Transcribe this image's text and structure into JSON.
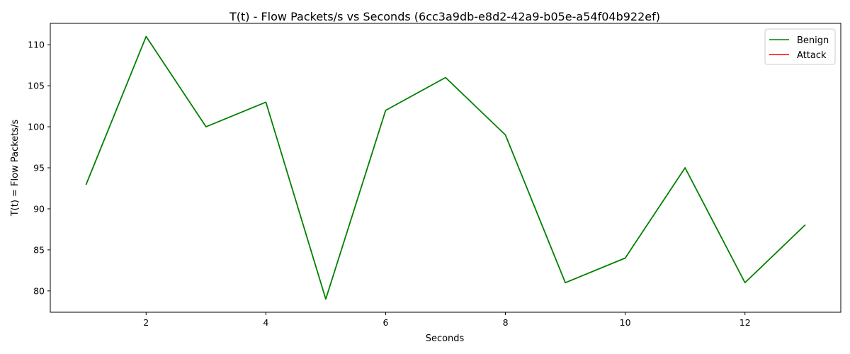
{
  "chart_data": {
    "type": "line",
    "title": "T(t) - Flow Packets/s vs Seconds (6cc3a9db-e8d2-42a9-b05e-a54f04b922ef)",
    "xlabel": "Seconds",
    "ylabel": "T(t) = Flow Packets/s",
    "xlim": [
      0.4,
      13.6
    ],
    "ylim": [
      77.4,
      112.6
    ],
    "xticks": [
      2,
      4,
      6,
      8,
      10,
      12
    ],
    "yticks": [
      80,
      85,
      90,
      95,
      100,
      105,
      110
    ],
    "grid": false,
    "legend_position": "top-right",
    "series": [
      {
        "name": "Benign",
        "color": "#008000",
        "x": [
          1,
          2,
          3,
          4,
          5,
          6,
          7,
          8,
          9,
          10,
          11,
          12,
          13
        ],
        "y": [
          93,
          111,
          100,
          103,
          79,
          102,
          106,
          99,
          81,
          84,
          95,
          81,
          88
        ]
      },
      {
        "name": "Attack",
        "color": "#ff0000",
        "x": [],
        "y": []
      }
    ]
  }
}
